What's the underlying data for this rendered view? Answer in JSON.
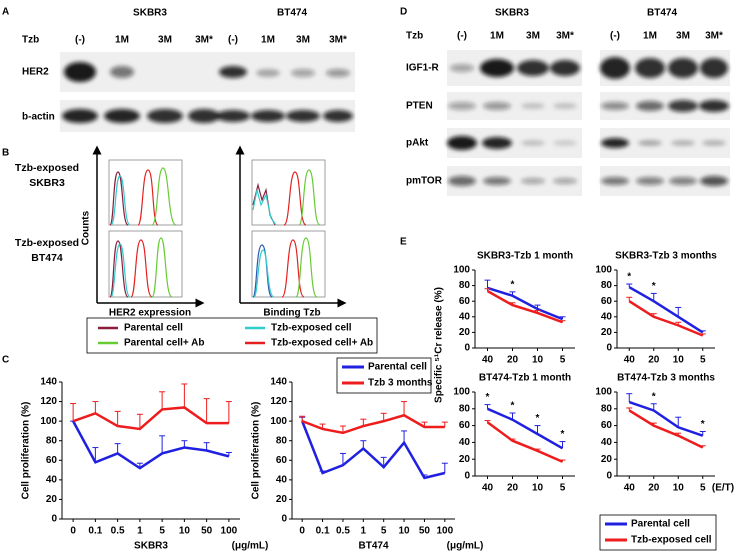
{
  "panel_labels": [
    "A",
    "B",
    "C",
    "D",
    "E"
  ],
  "blot_a": {
    "treatment_label": "Tzb",
    "cell_lines": [
      "SKBR3",
      "BT474"
    ],
    "lanes": [
      "(-)",
      "1M",
      "3M",
      "3M*"
    ],
    "proteins": [
      "HER2",
      "b-actin"
    ]
  },
  "blot_d": {
    "treatment_label": "Tzb",
    "cell_lines": [
      "SKBR3",
      "BT474"
    ],
    "lanes": [
      "(-)",
      "1M",
      "3M",
      "3M*"
    ],
    "proteins": [
      "IGF1-R",
      "PTEN",
      "pAkt",
      "pmTOR"
    ]
  },
  "flow": {
    "rows": [
      "Tzb-exposed SKBR3",
      "Tzb-exposed BT474"
    ],
    "y_label": "Counts",
    "x_labels": [
      "HER2 expression",
      "Binding Tzb"
    ],
    "legend": [
      {
        "name": "Parental cell",
        "color": "#8b1c3c"
      },
      {
        "name": "Tzb-exposed cell",
        "color": "#33cccc"
      },
      {
        "name": "Parental cell+ Ab",
        "color": "#66cc33"
      },
      {
        "name": "Tzb-exposed cell+ Ab",
        "color": "#e62020"
      }
    ]
  },
  "chart_data": [
    {
      "type": "line",
      "ylabel": "Cell proliferation (%)",
      "xlabel": "SKBR3",
      "xunit": "(μg/mL)",
      "categories": [
        "0",
        "0.1",
        "0.5",
        "1",
        "5",
        "10",
        "50",
        "100"
      ],
      "ylim": [
        0,
        140
      ],
      "yticks": [
        0,
        20,
        40,
        60,
        80,
        100,
        120,
        140
      ],
      "legend": "upper right",
      "series": [
        {
          "name": "Parental cell",
          "color": "#2020e0",
          "values": [
            100,
            58,
            67,
            52,
            67,
            73,
            70,
            64
          ],
          "errors": [
            0,
            15,
            10,
            5,
            18,
            7,
            8,
            4
          ]
        },
        {
          "name": "Tzb 3 months",
          "color": "#ee1c1c",
          "values": [
            100,
            108,
            95,
            92,
            112,
            114,
            98,
            98
          ],
          "errors": [
            18,
            12,
            15,
            15,
            18,
            24,
            25,
            22
          ]
        }
      ]
    },
    {
      "type": "line",
      "ylabel": "Cell proliferation (%)",
      "xlabel": "BT474",
      "xunit": "(μg/mL)",
      "categories": [
        "0",
        "0.1",
        "0.5",
        "1",
        "5",
        "10",
        "50",
        "100"
      ],
      "ylim": [
        0,
        140
      ],
      "yticks": [
        0,
        20,
        40,
        60,
        80,
        100,
        120,
        140
      ],
      "series": [
        {
          "color": "#2020e0",
          "values": [
            100,
            47,
            55,
            72,
            53,
            78,
            42,
            47
          ],
          "errors": [
            4,
            2,
            12,
            8,
            10,
            12,
            3,
            10
          ]
        },
        {
          "color": "#ee1c1c",
          "values": [
            100,
            92,
            88,
            95,
            100,
            106,
            94,
            94
          ],
          "errors": [
            5,
            5,
            7,
            7,
            8,
            14,
            5,
            5
          ]
        }
      ]
    },
    {
      "type": "line",
      "title": "SKBR3-Tzb  1 month",
      "categories": [
        "40",
        "20",
        "10",
        "5"
      ],
      "ylim": [
        0,
        100
      ],
      "yticks": [
        0,
        20,
        40,
        60,
        80,
        100
      ],
      "annotations": [
        null,
        "*",
        null,
        null
      ],
      "series": [
        {
          "color": "#2020e0",
          "values": [
            77,
            67,
            50,
            37
          ],
          "errors": [
            10,
            5,
            5,
            3
          ]
        },
        {
          "color": "#ee1c1c",
          "values": [
            73,
            55,
            45,
            33
          ],
          "errors": [
            3,
            3,
            3,
            2
          ]
        }
      ]
    },
    {
      "type": "line",
      "title": "SKBR3-Tzb  3 months",
      "categories": [
        "40",
        "20",
        "10",
        "5"
      ],
      "ylim": [
        0,
        100
      ],
      "yticks": [
        0,
        20,
        40,
        60,
        80,
        100
      ],
      "annotations": [
        "*",
        "*",
        null,
        null
      ],
      "series": [
        {
          "color": "#2020e0",
          "values": [
            78,
            60,
            40,
            20
          ],
          "errors": [
            4,
            10,
            12,
            2
          ]
        },
        {
          "color": "#ee1c1c",
          "values": [
            60,
            40,
            29,
            16
          ],
          "errors": [
            5,
            4,
            4,
            2
          ]
        }
      ]
    },
    {
      "type": "line",
      "title": "BT474-Tzb  1 month",
      "ylabel": "Specific ⁵¹Cr release (%)",
      "categories": [
        "40",
        "20",
        "10",
        "5"
      ],
      "ylim": [
        0,
        100
      ],
      "yticks": [
        0,
        20,
        40,
        60,
        80,
        100
      ],
      "annotations": [
        "*",
        "*",
        "*",
        "*"
      ],
      "series": [
        {
          "color": "#2020e0",
          "values": [
            80,
            67,
            50,
            33
          ],
          "errors": [
            5,
            8,
            10,
            8
          ]
        },
        {
          "color": "#ee1c1c",
          "values": [
            64,
            42,
            30,
            17
          ],
          "errors": [
            2,
            2,
            2,
            2
          ]
        }
      ]
    },
    {
      "type": "line",
      "title": "BT474-Tzb  3 months",
      "xunit": "(E/T)",
      "categories": [
        "40",
        "20",
        "10",
        "5"
      ],
      "ylim": [
        0,
        100
      ],
      "yticks": [
        0,
        20,
        40,
        60,
        80,
        100
      ],
      "annotations": [
        null,
        "*",
        null,
        "*"
      ],
      "legend": "below",
      "series": [
        {
          "name": "Parental cell",
          "color": "#2020e0",
          "values": [
            88,
            78,
            58,
            48
          ],
          "errors": [
            10,
            8,
            12,
            5
          ]
        },
        {
          "name": "Tzb-exposed cell",
          "color": "#ee1c1c",
          "values": [
            78,
            60,
            48,
            34
          ],
          "errors": [
            3,
            3,
            3,
            2
          ]
        }
      ]
    }
  ]
}
